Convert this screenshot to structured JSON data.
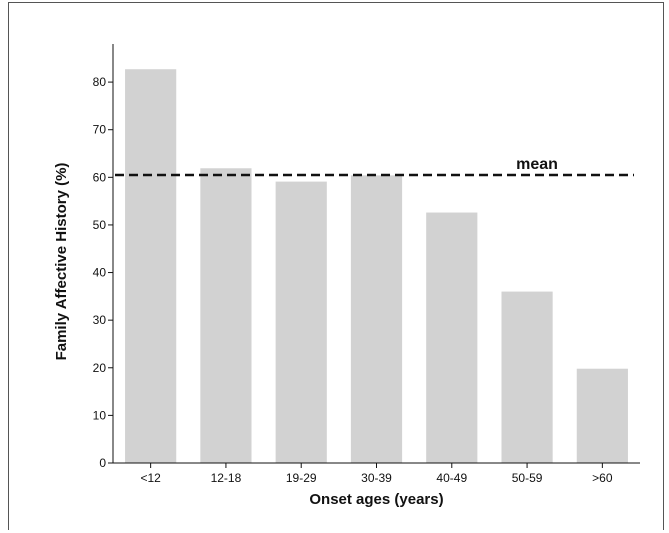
{
  "chart_data": {
    "type": "bar",
    "categories": [
      "<12",
      "12-18",
      "19-29",
      "30-39",
      "40-49",
      "50-59",
      ">60"
    ],
    "values": [
      82.7,
      61.9,
      59.1,
      60.4,
      52.6,
      36.0,
      19.8
    ],
    "xlabel": "Onset ages (years)",
    "ylabel": "Family Affective History (%)",
    "ylim": [
      0,
      88
    ],
    "yticks": [
      0,
      10,
      20,
      30,
      40,
      50,
      60,
      70,
      80
    ],
    "reference_line": {
      "label": "mean",
      "value": 60.5
    },
    "bar_color": "#d2d2d2",
    "grid": false
  }
}
